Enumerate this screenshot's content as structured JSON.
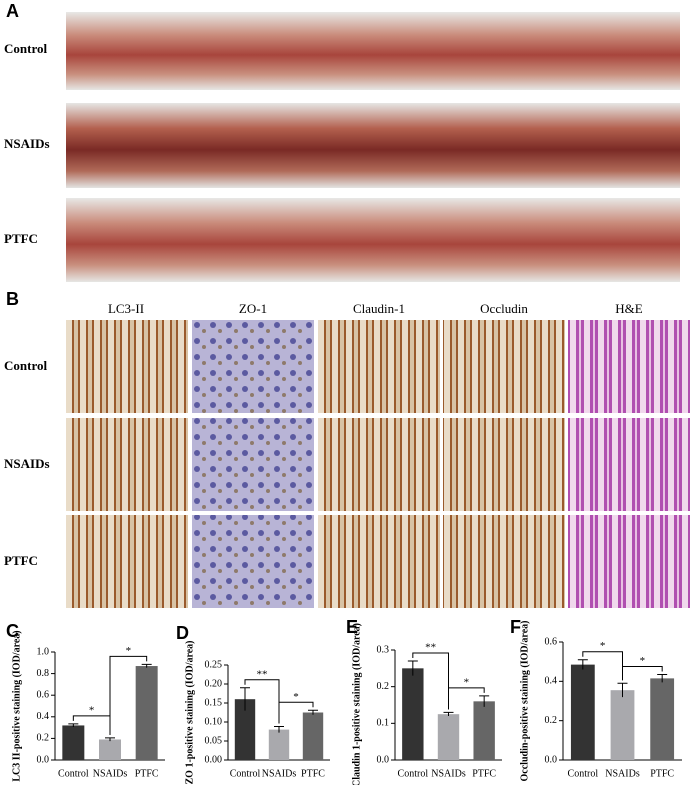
{
  "panels": {
    "a_label": "A",
    "b_label": "B",
    "a_rows": [
      "Control",
      "NSAIDs",
      "PTFC"
    ],
    "b_rows": [
      "Control",
      "NSAIDs",
      "PTFC"
    ],
    "b_columns": [
      "LC3-II",
      "ZO-1",
      "Claudin-1",
      "Occludin",
      "H&E"
    ]
  },
  "chart_data": [
    {
      "type": "bar",
      "panel": "C",
      "ylabel": "LC3 II-positive staining (IOD/area)",
      "categories": [
        "Control",
        "NSAIDs",
        "PTFC"
      ],
      "values": [
        0.32,
        0.19,
        0.87
      ],
      "errors": [
        0.015,
        0.015,
        0.015
      ],
      "colors": [
        "#333333",
        "#a9a9ad",
        "#666666"
      ],
      "ylim": [
        0,
        1.0
      ],
      "yticks": [
        {
          "value": 0,
          "label": "0.0"
        },
        0.2,
        0.4,
        0.6,
        0.8,
        {
          "value": 1.0,
          "label": "1.0"
        }
      ],
      "annotations": [
        "*",
        "*"
      ]
    },
    {
      "type": "bar",
      "panel": "D",
      "ylabel": "ZO 1-positive staining (IOD/area)",
      "categories": [
        "Control",
        "NSAIDs",
        "PTFC"
      ],
      "values": [
        0.16,
        0.08,
        0.125
      ],
      "errors": [
        0.03,
        0.008,
        0.006
      ],
      "colors": [
        "#333333",
        "#a9a9ad",
        "#666666"
      ],
      "ylim": [
        0,
        0.25
      ],
      "yticks": [
        {
          "value": 0,
          "label": "0.00"
        },
        0.05,
        {
          "value": 0.1,
          "label": "0.10"
        },
        0.15,
        {
          "value": 0.2,
          "label": "0.20"
        },
        0.25
      ],
      "annotations": [
        "**",
        "*"
      ]
    },
    {
      "type": "bar",
      "panel": "E",
      "ylabel": "Claudin 1-positive staining (IOD/area)",
      "categories": [
        "Control",
        "NSAIDs",
        "PTFC"
      ],
      "values": [
        0.25,
        0.125,
        0.16
      ],
      "errors": [
        0.02,
        0.005,
        0.015
      ],
      "colors": [
        "#333333",
        "#a9a9ad",
        "#666666"
      ],
      "ylim": [
        0,
        0.3
      ],
      "yticks": [
        {
          "value": 0,
          "label": "0.0"
        },
        0.1,
        0.2,
        0.3
      ],
      "annotations": [
        "**",
        "*"
      ]
    },
    {
      "type": "bar",
      "panel": "F",
      "ylabel": "Occludin-positive staining (IOD/area)",
      "categories": [
        "Control",
        "NSAIDs",
        "PTFC"
      ],
      "values": [
        0.485,
        0.355,
        0.415
      ],
      "errors": [
        0.025,
        0.035,
        0.02
      ],
      "colors": [
        "#333333",
        "#a9a9ad",
        "#666666"
      ],
      "ylim": [
        0,
        0.6
      ],
      "yticks": [
        {
          "value": 0,
          "label": "0.0"
        },
        0.2,
        0.4,
        0.6
      ],
      "annotations": [
        "*",
        "*"
      ]
    }
  ]
}
